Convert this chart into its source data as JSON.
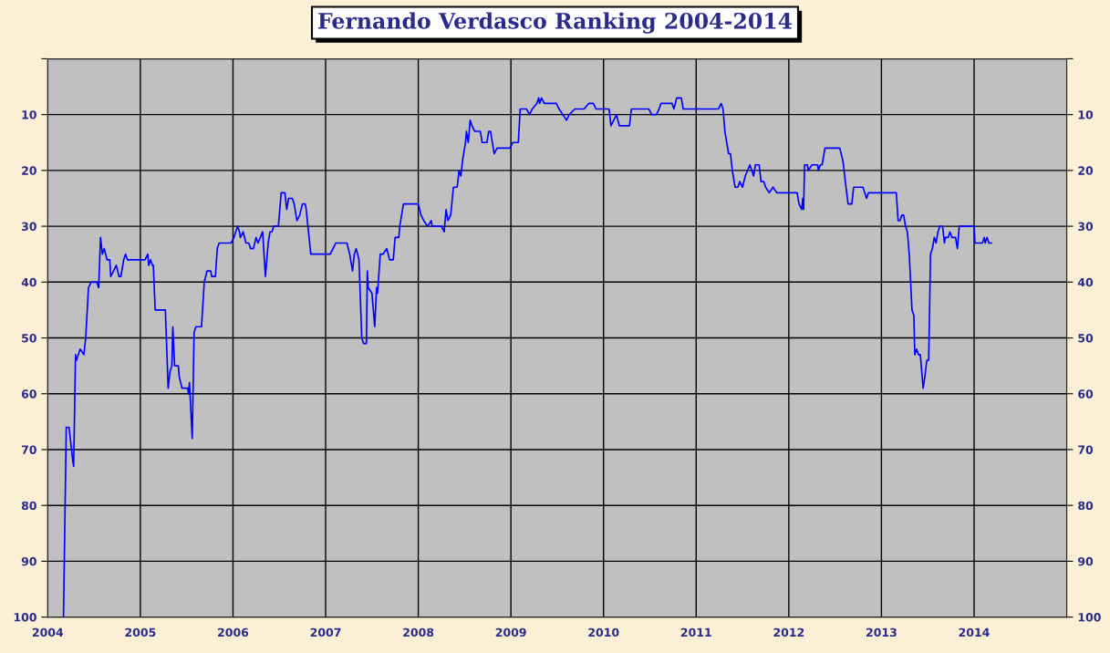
{
  "chart_data": {
    "type": "line",
    "title": "Fernando Verdasco Ranking 2004-2014",
    "x": [
      2004.17,
      2004.2,
      2004.23,
      2004.25,
      2004.27,
      2004.28,
      2004.3,
      2004.31,
      2004.35,
      2004.39,
      2004.41,
      2004.44,
      2004.47,
      2004.53,
      2004.55,
      2004.57,
      2004.59,
      2004.61,
      2004.64,
      2004.67,
      2004.68,
      2004.71,
      2004.74,
      2004.77,
      2004.79,
      2004.82,
      2004.84,
      2004.86,
      2005.05,
      2005.08,
      2005.09,
      2005.11,
      2005.13,
      2005.14,
      2005.16,
      2005.27,
      2005.3,
      2005.32,
      2005.34,
      2005.35,
      2005.37,
      2005.41,
      2005.42,
      2005.45,
      2005.51,
      2005.52,
      2005.53,
      2005.56,
      2005.58,
      2005.6,
      2005.66,
      2005.69,
      2005.72,
      2005.76,
      2005.77,
      2005.81,
      2005.83,
      2005.85,
      2005.98,
      2006.01,
      2006.05,
      2006.07,
      2006.08,
      2006.11,
      2006.14,
      2006.17,
      2006.19,
      2006.22,
      2006.25,
      2006.27,
      2006.32,
      2006.35,
      2006.38,
      2006.4,
      2006.42,
      2006.44,
      2006.49,
      2006.52,
      2006.56,
      2006.58,
      2006.6,
      2006.64,
      2006.66,
      2006.69,
      2006.72,
      2006.75,
      2006.78,
      2006.79,
      2006.84,
      2007.05,
      2007.11,
      2007.23,
      2007.26,
      2007.29,
      2007.31,
      2007.33,
      2007.36,
      2007.39,
      2007.41,
      2007.44,
      2007.45,
      2007.46,
      2007.5,
      2007.53,
      2007.55,
      2007.56,
      2007.59,
      2007.62,
      2007.66,
      2007.69,
      2007.73,
      2007.75,
      2007.79,
      2007.8,
      2007.84,
      2008.0,
      2008.03,
      2008.06,
      2008.1,
      2008.14,
      2008.15,
      2008.25,
      2008.28,
      2008.3,
      2008.32,
      2008.35,
      2008.38,
      2008.42,
      2008.44,
      2008.46,
      2008.48,
      2008.51,
      2008.52,
      2008.54,
      2008.56,
      2008.58,
      2008.61,
      2008.67,
      2008.69,
      2008.74,
      2008.76,
      2008.78,
      2008.81,
      2008.82,
      2008.85,
      2008.99,
      2009.02,
      2009.08,
      2009.1,
      2009.17,
      2009.2,
      2009.23,
      2009.28,
      2009.3,
      2009.31,
      2009.33,
      2009.36,
      2009.49,
      2009.52,
      2009.56,
      2009.6,
      2009.63,
      2009.69,
      2009.79,
      2009.84,
      2009.89,
      2009.92,
      2010.06,
      2010.08,
      2010.11,
      2010.14,
      2010.17,
      2010.28,
      2010.3,
      2010.49,
      2010.52,
      2010.57,
      2010.6,
      2010.62,
      2010.74,
      2010.76,
      2010.79,
      2010.84,
      2010.86,
      2011.24,
      2011.27,
      2011.29,
      2011.31,
      2011.35,
      2011.37,
      2011.39,
      2011.42,
      2011.45,
      2011.47,
      2011.5,
      2011.53,
      2011.58,
      2011.62,
      2011.64,
      2011.68,
      2011.7,
      2011.73,
      2011.75,
      2011.79,
      2011.83,
      2011.87,
      2012.09,
      2012.11,
      2012.14,
      2012.15,
      2012.16,
      2012.17,
      2012.2,
      2012.21,
      2012.25,
      2012.31,
      2012.32,
      2012.34,
      2012.36,
      2012.39,
      2012.55,
      2012.58,
      2012.59,
      2012.61,
      2012.64,
      2012.68,
      2012.7,
      2012.8,
      2012.84,
      2012.86,
      2013.16,
      2013.18,
      2013.2,
      2013.22,
      2013.24,
      2013.26,
      2013.28,
      2013.3,
      2013.33,
      2013.35,
      2013.36,
      2013.38,
      2013.4,
      2013.42,
      2013.45,
      2013.46,
      2013.49,
      2013.51,
      2013.53,
      2013.55,
      2013.57,
      2013.59,
      2013.61,
      2013.63,
      2013.66,
      2013.68,
      2013.69,
      2013.72,
      2013.74,
      2013.76,
      2013.8,
      2013.82,
      2013.84,
      2014.0,
      2014.01,
      2014.09,
      2014.11,
      2014.12,
      2014.14,
      2014.16,
      2014.19
    ],
    "series": [
      {
        "color": "#0000ff",
        "values": [
          100,
          66,
          66,
          69,
          72,
          73,
          53,
          54,
          52,
          53,
          50,
          41,
          40,
          40,
          41,
          32,
          35,
          34,
          36,
          36,
          39,
          38,
          37,
          39,
          39,
          36,
          35,
          36,
          36,
          35,
          37,
          36,
          37,
          37,
          45,
          45,
          59,
          56,
          55,
          48,
          55,
          55,
          57,
          59,
          59,
          60,
          58,
          68,
          49,
          48,
          48,
          40,
          38,
          38,
          39,
          39,
          34,
          33,
          33,
          32,
          30,
          31,
          32,
          31,
          33,
          33,
          34,
          34,
          32,
          33,
          31,
          39,
          33,
          31,
          31,
          30,
          30,
          24,
          24,
          27,
          25,
          25,
          26,
          29,
          28,
          26,
          26,
          27,
          35,
          35,
          33,
          33,
          35,
          38,
          35,
          34,
          36,
          50,
          51,
          51,
          38,
          41,
          42,
          48,
          41,
          42,
          35,
          35,
          34,
          36,
          36,
          32,
          32,
          30,
          26,
          26,
          28,
          29,
          30,
          29,
          30,
          30,
          31,
          27,
          29,
          28,
          23,
          23,
          20,
          21,
          18,
          15,
          13,
          15,
          11,
          12,
          13,
          13,
          15,
          15,
          13,
          13,
          16,
          17,
          16,
          16,
          15,
          15,
          9,
          9,
          10,
          9,
          8,
          7,
          8,
          7,
          8,
          8,
          9,
          10,
          11,
          10,
          9,
          9,
          8,
          8,
          9,
          9,
          12,
          11,
          10,
          12,
          12,
          9,
          9,
          10,
          10,
          9,
          8,
          8,
          9,
          7,
          7,
          9,
          9,
          8,
          9,
          13,
          17,
          17,
          20,
          23,
          23,
          22,
          23,
          21,
          19,
          21,
          19,
          19,
          22,
          22,
          23,
          24,
          23,
          24,
          24,
          26,
          27,
          25,
          27,
          19,
          19,
          20,
          19,
          19,
          20,
          19,
          19,
          16,
          16,
          18,
          19,
          22,
          26,
          26,
          23,
          23,
          25,
          24,
          24,
          29,
          29,
          28,
          28,
          30,
          31,
          35,
          45,
          46,
          53,
          52,
          53,
          53,
          59,
          58,
          54,
          54,
          35,
          34,
          32,
          33,
          31,
          30,
          30,
          33,
          32,
          32,
          31,
          32,
          32,
          34,
          30,
          30,
          33,
          33,
          32,
          33,
          32,
          33,
          33
        ]
      }
    ],
    "xlim": [
      2004,
      2015
    ],
    "xticks": [
      2004,
      2005,
      2006,
      2007,
      2008,
      2009,
      2010,
      2011,
      2012,
      2013,
      2014
    ],
    "ylim": [
      100,
      0
    ],
    "yticks": [
      {
        "value": 0,
        "label": null
      },
      10,
      20,
      30,
      40,
      50,
      60,
      70,
      80,
      90,
      100
    ],
    "y2lim": [
      100,
      0
    ],
    "y2ticks": [
      {
        "value": 0,
        "label": null
      },
      10,
      20,
      30,
      40,
      50,
      60,
      70,
      80,
      90,
      100
    ],
    "grid": true,
    "marker": "none",
    "line_style": "solid"
  }
}
